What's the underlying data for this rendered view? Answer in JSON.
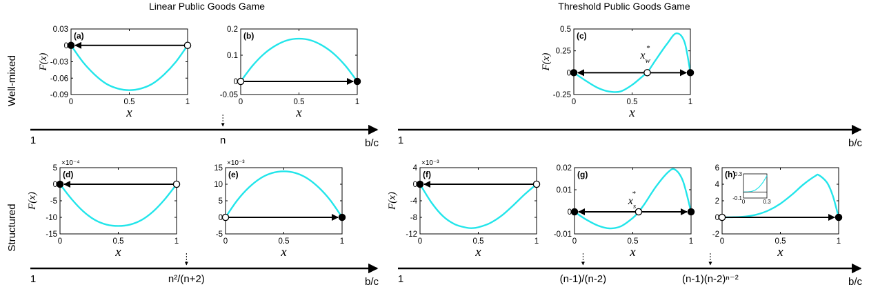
{
  "headers": {
    "left": "Linear Public Goods Game",
    "right": "Threshold Public Goods Game"
  },
  "row_labels": {
    "top": "Well-mixed",
    "bottom": "Structured"
  },
  "colors": {
    "curve": "#22e5ea",
    "axis": "#000000"
  },
  "timelines": [
    {
      "id": "t1",
      "start": "1",
      "end": "b/c",
      "marks": [
        {
          "label": "n",
          "frac": 0.555
        }
      ]
    },
    {
      "id": "t2",
      "start": "1",
      "end": "b/c",
      "marks": []
    },
    {
      "id": "t3",
      "start": "1",
      "end": "b/c",
      "marks": [
        {
          "label": "n²/(n+2)",
          "frac": 0.45
        }
      ]
    },
    {
      "id": "t4",
      "start": "1",
      "end": "b/c",
      "marks": [
        {
          "label": "(n-1)/(n-2)",
          "frac": 0.4
        },
        {
          "label": "(n-1)(n-2)ⁿ⁻²",
          "frac": 0.675
        }
      ]
    }
  ],
  "chart_data": [
    {
      "id": "a",
      "type": "line",
      "panel_label": "(a)",
      "title": "",
      "xlabel": "x",
      "ylabel": "F(x)",
      "exponent": "",
      "xlim": [
        0,
        1
      ],
      "ylim": [
        -0.09,
        0.03
      ],
      "xticks": [
        0,
        0.5,
        1
      ],
      "xtick_labels": [
        "0",
        "0.5",
        "1"
      ],
      "yticks": [
        0.03,
        0,
        -0.03,
        -0.06,
        -0.09
      ],
      "ytick_labels": [
        "0.03",
        "0",
        "-0.03",
        "-0.06",
        "-0.09"
      ],
      "series": [
        {
          "x": [
            0,
            0.1,
            0.2,
            0.3,
            0.4,
            0.5,
            0.6,
            0.7,
            0.8,
            0.9,
            1
          ],
          "y": [
            0,
            -0.03,
            -0.053,
            -0.07,
            -0.079,
            -0.082,
            -0.079,
            -0.07,
            -0.053,
            -0.03,
            0
          ]
        }
      ],
      "fixed_points": [
        {
          "x": 0,
          "y": 0,
          "filled": true
        },
        {
          "x": 1,
          "y": 0,
          "filled": false
        }
      ],
      "arrow": {
        "from": 1,
        "to": 0,
        "y": 0,
        "bidir": false
      },
      "annotation": null,
      "inset": null
    },
    {
      "id": "b",
      "type": "line",
      "panel_label": "(b)",
      "title": "",
      "xlabel": "x",
      "ylabel": "",
      "exponent": "",
      "xlim": [
        0,
        1
      ],
      "ylim": [
        -0.05,
        0.2
      ],
      "xticks": [
        0,
        0.5,
        1
      ],
      "xtick_labels": [
        "0",
        "0.5",
        "1"
      ],
      "yticks": [
        0.2,
        0.1,
        0,
        -0.05
      ],
      "ytick_labels": [
        "0.2",
        "0.1",
        "0",
        "-0.05"
      ],
      "series": [
        {
          "x": [
            0,
            0.1,
            0.2,
            0.3,
            0.4,
            0.5,
            0.6,
            0.7,
            0.8,
            0.9,
            1
          ],
          "y": [
            0,
            0.059,
            0.105,
            0.137,
            0.157,
            0.163,
            0.157,
            0.137,
            0.105,
            0.059,
            0
          ]
        }
      ],
      "fixed_points": [
        {
          "x": 0,
          "y": 0,
          "filled": false
        },
        {
          "x": 1,
          "y": 0,
          "filled": true
        }
      ],
      "arrow": {
        "from": 0,
        "to": 1,
        "y": 0,
        "bidir": false
      },
      "annotation": null,
      "inset": null
    },
    {
      "id": "c",
      "type": "line",
      "panel_label": "(c)",
      "title": "",
      "xlabel": "x",
      "ylabel": "F(x)",
      "exponent": "",
      "xlim": [
        0,
        1
      ],
      "ylim": [
        -0.25,
        0.5
      ],
      "xticks": [
        0,
        0.5,
        1
      ],
      "xtick_labels": [
        "0",
        "0.5",
        "1"
      ],
      "yticks": [
        0.5,
        0.25,
        0,
        -0.25
      ],
      "ytick_labels": [
        "0.5",
        "0.25",
        "0",
        "-0.25"
      ],
      "series": [
        {
          "x": [
            0,
            0.1,
            0.2,
            0.3,
            0.4,
            0.5,
            0.6,
            0.63,
            0.7,
            0.8,
            0.88,
            0.95,
            1
          ],
          "y": [
            0,
            -0.09,
            -0.17,
            -0.215,
            -0.215,
            -0.14,
            -0.03,
            0,
            0.14,
            0.33,
            0.45,
            0.35,
            0
          ]
        }
      ],
      "fixed_points": [
        {
          "x": 0,
          "y": 0,
          "filled": true
        },
        {
          "x": 0.63,
          "y": 0,
          "filled": false
        },
        {
          "x": 1,
          "y": 0,
          "filled": true
        }
      ],
      "arrow": {
        "from": 0,
        "to": 1,
        "y": 0,
        "bidir": true
      },
      "annotation": {
        "base": "x",
        "sub": "w",
        "sup": "*",
        "x": 0.57,
        "y": 0.16
      },
      "inset": null
    },
    {
      "id": "d",
      "type": "line",
      "panel_label": "(d)",
      "title": "",
      "xlabel": "x",
      "ylabel": "F(x)",
      "exponent": "×10⁻⁴",
      "xlim": [
        0,
        1
      ],
      "ylim": [
        -15,
        5
      ],
      "xticks": [
        0,
        0.5,
        1
      ],
      "xtick_labels": [
        "0",
        "0.5",
        "1"
      ],
      "yticks": [
        5,
        0,
        -5,
        -10,
        -15
      ],
      "ytick_labels": [
        "5",
        "0",
        "-5",
        "-10",
        "-15"
      ],
      "series": [
        {
          "x": [
            0,
            0.1,
            0.2,
            0.3,
            0.4,
            0.5,
            0.6,
            0.7,
            0.8,
            0.9,
            1
          ],
          "y": [
            0,
            -4.5,
            -8.2,
            -10.8,
            -12.2,
            -12.6,
            -12.2,
            -10.8,
            -8.2,
            -4.5,
            0
          ]
        }
      ],
      "fixed_points": [
        {
          "x": 0,
          "y": 0,
          "filled": true
        },
        {
          "x": 1,
          "y": 0,
          "filled": false
        }
      ],
      "arrow": {
        "from": 1,
        "to": 0,
        "y": 0,
        "bidir": false
      },
      "annotation": null,
      "inset": null
    },
    {
      "id": "e",
      "type": "line",
      "panel_label": "(e)",
      "title": "",
      "xlabel": "x",
      "ylabel": "",
      "exponent": "×10⁻³",
      "xlim": [
        0,
        1
      ],
      "ylim": [
        -5,
        15
      ],
      "xticks": [
        0,
        0.5,
        1
      ],
      "xtick_labels": [
        "0",
        "0.5",
        "1"
      ],
      "yticks": [
        15,
        10,
        5,
        0,
        -5
      ],
      "ytick_labels": [
        "15",
        "10",
        "5",
        "0",
        "-5"
      ],
      "series": [
        {
          "x": [
            0,
            0.1,
            0.2,
            0.3,
            0.4,
            0.5,
            0.6,
            0.7,
            0.8,
            0.9,
            1
          ],
          "y": [
            0,
            5.1,
            9.0,
            11.8,
            13.4,
            13.9,
            13.4,
            11.8,
            9.0,
            5.1,
            0
          ]
        }
      ],
      "fixed_points": [
        {
          "x": 0,
          "y": 0,
          "filled": false
        },
        {
          "x": 1,
          "y": 0,
          "filled": true
        }
      ],
      "arrow": {
        "from": 0,
        "to": 1,
        "y": 0,
        "bidir": false
      },
      "annotation": null,
      "inset": null
    },
    {
      "id": "f",
      "type": "line",
      "panel_label": "(f)",
      "title": "",
      "xlabel": "x",
      "ylabel": "F(x)",
      "exponent": "×10⁻³",
      "xlim": [
        0,
        1
      ],
      "ylim": [
        -12,
        4
      ],
      "xticks": [
        0,
        0.5,
        1
      ],
      "xtick_labels": [
        "0",
        "0.5",
        "1"
      ],
      "yticks": [
        4,
        0,
        -4,
        -8,
        -12
      ],
      "ytick_labels": [
        "4",
        "0",
        "-4",
        "-8",
        "-12"
      ],
      "series": [
        {
          "x": [
            0,
            0.1,
            0.2,
            0.3,
            0.4,
            0.45,
            0.5,
            0.6,
            0.7,
            0.8,
            0.9,
            1
          ],
          "y": [
            0,
            -4.5,
            -7.8,
            -9.7,
            -10.5,
            -10.6,
            -10.4,
            -9.4,
            -7.6,
            -5.1,
            -2.4,
            0
          ]
        }
      ],
      "fixed_points": [
        {
          "x": 0,
          "y": 0,
          "filled": true
        },
        {
          "x": 1,
          "y": 0,
          "filled": false
        }
      ],
      "arrow": {
        "from": 1,
        "to": 0,
        "y": 0,
        "bidir": false
      },
      "annotation": null,
      "inset": null
    },
    {
      "id": "g",
      "type": "line",
      "panel_label": "(g)",
      "title": "",
      "xlabel": "x",
      "ylabel": "",
      "exponent": "",
      "xlim": [
        0,
        1
      ],
      "ylim": [
        -0.01,
        0.02
      ],
      "xticks": [
        0,
        0.5,
        1
      ],
      "xtick_labels": [
        "0",
        "0.5",
        "1"
      ],
      "yticks": [
        0.02,
        0.01,
        0,
        -0.01
      ],
      "ytick_labels": [
        "0.02",
        "0.01",
        "0",
        "-0.01"
      ],
      "series": [
        {
          "x": [
            0,
            0.1,
            0.2,
            0.3,
            0.4,
            0.5,
            0.55,
            0.6,
            0.7,
            0.8,
            0.86,
            0.93,
            1
          ],
          "y": [
            0,
            -0.0035,
            -0.0062,
            -0.0075,
            -0.0065,
            -0.0028,
            0,
            0.0035,
            0.0115,
            0.0178,
            0.0192,
            0.014,
            0
          ]
        }
      ],
      "fixed_points": [
        {
          "x": 0,
          "y": 0,
          "filled": true
        },
        {
          "x": 0.55,
          "y": 0,
          "filled": false
        },
        {
          "x": 1,
          "y": 0,
          "filled": true
        }
      ],
      "arrow": {
        "from": 0,
        "to": 1,
        "y": 0,
        "bidir": true
      },
      "annotation": {
        "base": "x",
        "sub": "s",
        "sup": "*",
        "x": 0.46,
        "y": 0.0035
      },
      "inset": null
    },
    {
      "id": "h",
      "type": "line",
      "panel_label": "(h)",
      "title": "",
      "xlabel": "x",
      "ylabel": "",
      "exponent": "",
      "xlim": [
        0,
        1
      ],
      "ylim": [
        -2,
        6
      ],
      "xticks": [
        0,
        0.5,
        1
      ],
      "xtick_labels": [
        "0",
        "0.5",
        "1"
      ],
      "yticks": [
        6,
        4,
        2,
        0,
        -2
      ],
      "ytick_labels": [
        "6",
        "4",
        "2",
        "0",
        "-2"
      ],
      "series": [
        {
          "x": [
            0,
            0.1,
            0.2,
            0.3,
            0.4,
            0.5,
            0.6,
            0.7,
            0.8,
            0.83,
            0.9,
            0.95,
            1
          ],
          "y": [
            0,
            0.02,
            0.1,
            0.35,
            0.85,
            1.65,
            2.75,
            4.0,
            5.0,
            5.1,
            4.2,
            2.6,
            0
          ]
        }
      ],
      "fixed_points": [
        {
          "x": 0,
          "y": 0,
          "filled": false
        },
        {
          "x": 1,
          "y": 0,
          "filled": true
        }
      ],
      "arrow": {
        "from": 0,
        "to": 1,
        "y": 0,
        "bidir": false
      },
      "annotation": null,
      "inset": {
        "xlim": [
          0,
          0.3
        ],
        "ylim": [
          -0.1,
          0.3
        ],
        "xticks": [
          0,
          0.3
        ],
        "xtick_labels": [
          "0",
          "0.3"
        ],
        "yticks": [
          0.3,
          -0.1
        ],
        "ytick_labels": [
          "0.3",
          "-0.1"
        ],
        "x": [
          0,
          0.05,
          0.1,
          0.15,
          0.2,
          0.25,
          0.3
        ],
        "y": [
          0,
          0.001,
          0.008,
          0.03,
          0.08,
          0.16,
          0.27
        ]
      }
    }
  ]
}
